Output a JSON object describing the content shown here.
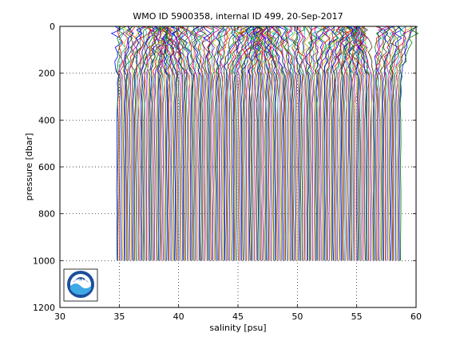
{
  "chart_data": {
    "type": "line",
    "title": "WMO ID 5900358, internal ID 499, 20-Sep-2017",
    "xlabel": "salinity [psu]",
    "ylabel": "pressure [dbar]",
    "xlim": [
      30,
      60
    ],
    "ylim": [
      0,
      1200
    ],
    "y_reversed": true,
    "x_ticks": [
      "30",
      "35",
      "40",
      "45",
      "50",
      "55",
      "60"
    ],
    "y_ticks": [
      "0",
      "200",
      "400",
      "600",
      "800",
      "1000",
      "1200"
    ],
    "grid": true,
    "grid_style": "dotted",
    "profile_offset_psu": 0.1,
    "series_count": 240,
    "profile_depth_dbar": 1000,
    "deep_salinity_first_psu": 34.8,
    "colors": [
      "#0000ff",
      "#008000",
      "#ff0000",
      "#00bfbf",
      "#bf00bf",
      "#bfbf00",
      "#404040"
    ],
    "logo": {
      "text": "NOAA",
      "outer": "#ffffff",
      "ring": "#1b4f9c",
      "inner": "#3fa9e6"
    }
  }
}
